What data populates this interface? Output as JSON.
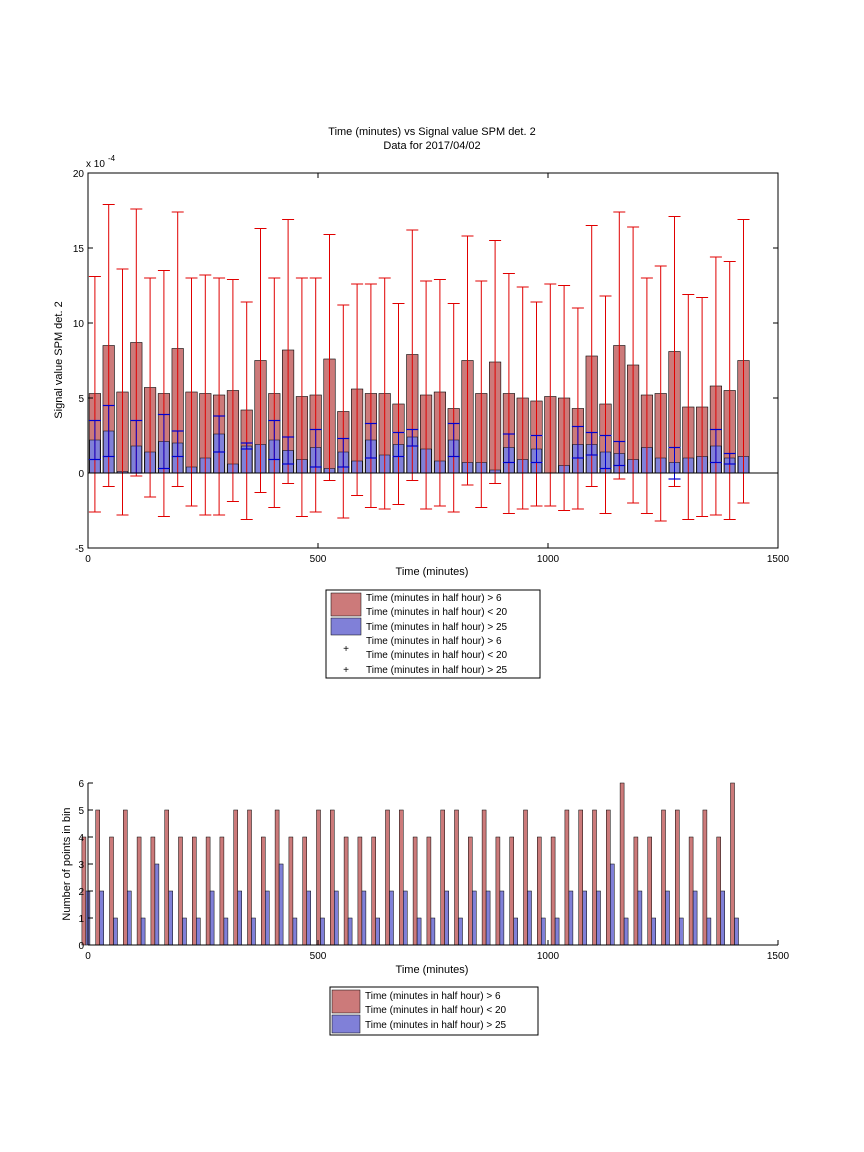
{
  "chart_data": [
    {
      "type": "bar",
      "title": "Time (minutes) vs Signal value SPM det. 2",
      "subtitle": "Data for 2017/04/02",
      "xlabel": "Time (minutes)",
      "ylabel": "Signal value SPM det. 2",
      "exponent_label": "x 10",
      "exponent_power": "-4",
      "xlim": [
        0,
        1500
      ],
      "ylim": [
        -5,
        20
      ],
      "xticks": [
        "0",
        "500",
        "1000",
        "1500"
      ],
      "yticks": [
        "-5",
        "0",
        "5",
        "10",
        "15",
        "20"
      ],
      "grid": false,
      "legend_position": "below",
      "bin_centers": [
        15,
        45,
        75,
        105,
        135,
        165,
        195,
        225,
        255,
        285,
        315,
        345,
        375,
        405,
        435,
        465,
        495,
        525,
        555,
        585,
        615,
        645,
        675,
        705,
        735,
        765,
        795,
        825,
        855,
        885,
        915,
        945,
        975,
        1005,
        1035,
        1065,
        1095,
        1125,
        1155,
        1185,
        1215,
        1245,
        1275,
        1305,
        1335,
        1365,
        1395,
        1425
      ],
      "series": [
        {
          "name": "Time (minutes in half hour) > 6\nTime (minutes in half hour) < 20",
          "color": "#cc7a7a",
          "values": [
            5.3,
            8.5,
            5.4,
            8.7,
            5.7,
            5.3,
            8.3,
            5.4,
            5.3,
            5.2,
            5.5,
            4.2,
            7.5,
            5.3,
            8.2,
            5.1,
            5.2,
            7.6,
            4.1,
            5.6,
            5.3,
            5.3,
            4.6,
            7.9,
            5.2,
            5.4,
            4.3,
            7.5,
            5.3,
            7.4,
            5.3,
            5.0,
            4.8,
            5.1,
            5.0,
            4.3,
            7.8,
            4.6,
            8.5,
            7.2,
            5.2,
            5.3,
            8.1,
            4.4,
            4.4,
            5.8,
            5.5,
            7.5
          ],
          "err_low": [
            -2.6,
            -0.9,
            -2.8,
            -0.2,
            -1.6,
            -2.9,
            -0.9,
            -2.2,
            -2.8,
            -2.8,
            -1.9,
            -3.1,
            -1.3,
            -2.3,
            -0.7,
            -2.9,
            -2.6,
            -0.5,
            -3.0,
            -1.5,
            -2.3,
            -2.4,
            -2.1,
            -0.5,
            -2.4,
            -2.2,
            -2.6,
            -0.8,
            -2.3,
            -0.7,
            -2.7,
            -2.4,
            -2.2,
            -2.2,
            -2.5,
            -2.4,
            -0.9,
            -2.7,
            -0.4,
            -2.0,
            -2.7,
            -3.2,
            -0.9,
            -3.1,
            -2.9,
            -2.8,
            -3.1,
            -2.0
          ],
          "err_high": [
            13.1,
            17.9,
            13.6,
            17.6,
            13.0,
            13.5,
            17.4,
            13.0,
            13.2,
            13.0,
            12.9,
            11.4,
            16.3,
            13.0,
            16.9,
            13.0,
            13.0,
            15.9,
            11.2,
            12.6,
            12.6,
            13.0,
            11.3,
            16.2,
            12.8,
            12.9,
            11.3,
            15.8,
            12.8,
            15.5,
            13.3,
            12.4,
            11.4,
            12.6,
            12.5,
            11.0,
            16.5,
            11.8,
            17.4,
            16.4,
            13.0,
            13.8,
            17.1,
            11.9,
            11.7,
            14.4,
            14.1,
            16.9
          ]
        },
        {
          "name": "Time (minutes in half hour) > 25",
          "color": "#8080d8",
          "values": [
            2.2,
            2.8,
            0.1,
            1.8,
            1.4,
            2.1,
            2.0,
            0.4,
            1.0,
            2.6,
            0.6,
            1.8,
            1.9,
            2.2,
            1.5,
            0.9,
            1.7,
            0.3,
            1.4,
            0.8,
            2.2,
            1.2,
            1.9,
            2.4,
            1.6,
            0.8,
            2.2,
            0.7,
            0.7,
            0.2,
            1.7,
            0.9,
            1.6,
            0,
            0.5,
            1.9,
            1.9,
            1.4,
            1.3,
            0.9,
            1.7,
            1.0,
            0.7,
            1.0,
            1.1,
            1.8,
            1.0,
            1.1
          ],
          "err_low": [
            0.9,
            1.1,
            null,
            0,
            null,
            0.3,
            1.1,
            null,
            null,
            1.4,
            null,
            1.6,
            null,
            0.9,
            0.6,
            null,
            0.4,
            null,
            0.4,
            null,
            1.0,
            null,
            1.1,
            1.8,
            null,
            null,
            1.1,
            null,
            null,
            null,
            0.7,
            null,
            0.7,
            null,
            null,
            1.0,
            1.2,
            0.3,
            0.5,
            null,
            null,
            null,
            -0.4,
            null,
            null,
            0.7,
            0.6,
            null
          ],
          "err_high": [
            3.5,
            4.5,
            null,
            3.5,
            null,
            3.9,
            2.8,
            null,
            null,
            3.8,
            null,
            2.0,
            null,
            3.5,
            2.4,
            null,
            2.9,
            null,
            2.3,
            null,
            3.3,
            null,
            2.7,
            2.9,
            null,
            null,
            3.3,
            null,
            null,
            null,
            2.6,
            null,
            2.5,
            null,
            null,
            3.1,
            2.7,
            2.5,
            2.1,
            null,
            null,
            null,
            1.7,
            null,
            null,
            2.9,
            1.3,
            null
          ]
        }
      ]
    },
    {
      "type": "bar",
      "xlabel": "Time (minutes)",
      "ylabel": "Number of points in bin",
      "xlim": [
        0,
        1500
      ],
      "ylim": [
        0,
        6
      ],
      "xticks": [
        "0",
        "500",
        "1000",
        "1500"
      ],
      "yticks": [
        "0",
        "1",
        "2",
        "3",
        "4",
        "5",
        "6"
      ],
      "grid": false,
      "legend_position": "below",
      "bin_centers": [
        15,
        45,
        75,
        105,
        135,
        165,
        195,
        225,
        255,
        285,
        315,
        345,
        375,
        405,
        435,
        465,
        495,
        525,
        555,
        585,
        615,
        645,
        675,
        705,
        735,
        765,
        795,
        825,
        855,
        885,
        915,
        945,
        975,
        1005,
        1035,
        1065,
        1095,
        1125,
        1155,
        1185,
        1215,
        1245,
        1275,
        1305,
        1335,
        1365,
        1395,
        1425
      ],
      "series": [
        {
          "name": "Time (minutes in half hour) > 6\nTime (minutes in half hour) < 20",
          "color": "#cc7a7a",
          "values": [
            4,
            5,
            4,
            5,
            4,
            4,
            5,
            4,
            4,
            4,
            4,
            5,
            5,
            4,
            5,
            4,
            4,
            5,
            5,
            4,
            4,
            4,
            5,
            5,
            4,
            4,
            5,
            5,
            4,
            5,
            4,
            4,
            5,
            4,
            4,
            5,
            5,
            5,
            5,
            6,
            4,
            4,
            5,
            5,
            4,
            5,
            4,
            6
          ]
        },
        {
          "name": "Time (minutes in half hour) > 25",
          "color": "#8080d8",
          "values": [
            2,
            2,
            1,
            2,
            1,
            3,
            2,
            1,
            1,
            2,
            1,
            2,
            1,
            2,
            3,
            1,
            2,
            1,
            2,
            1,
            2,
            1,
            2,
            2,
            1,
            1,
            2,
            1,
            2,
            2,
            2,
            1,
            2,
            1,
            1,
            2,
            2,
            2,
            3,
            1,
            2,
            1,
            2,
            1,
            2,
            1,
            2,
            1
          ]
        }
      ]
    }
  ]
}
